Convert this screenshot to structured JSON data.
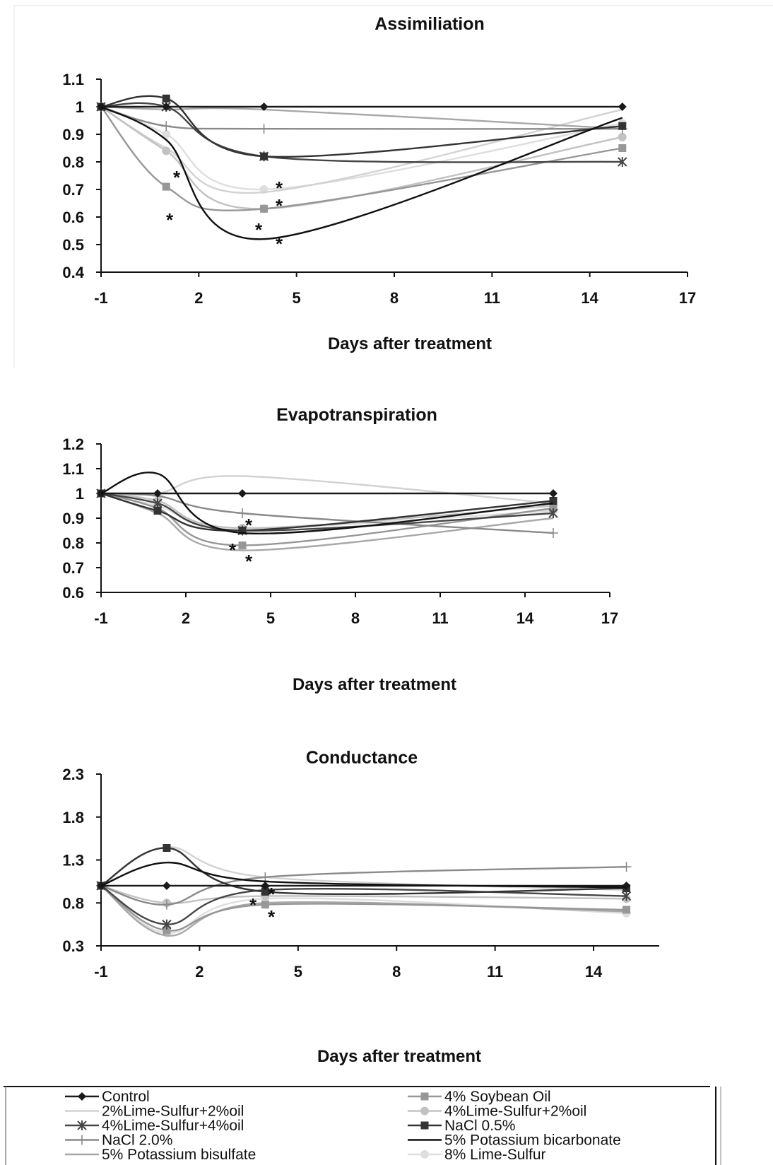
{
  "chart_data": [
    {
      "type": "line",
      "title": "Assimiliation",
      "xlabel": "Days after treatment",
      "ylabel": "",
      "xlim": [
        -1,
        17
      ],
      "ylim": [
        0.4,
        1.1
      ],
      "xticks": [
        "-1",
        "2",
        "5",
        "8",
        "11",
        "14",
        "17"
      ],
      "yticks": [
        "0.4",
        "0.5",
        "0.6",
        "0.7",
        "0.8",
        "0.9",
        "1",
        "1.1"
      ],
      "x": [
        -1,
        1,
        4,
        15
      ],
      "series": [
        {
          "name": "Control",
          "values": [
            1.0,
            1.0,
            1.0,
            1.0
          ]
        },
        {
          "name": "2%Lime-Sulfur+2%oil",
          "values": [
            1.0,
            0.85,
            0.69,
            0.99
          ]
        },
        {
          "name": "4%Lime-Sulfur+4%oil",
          "values": [
            1.0,
            1.0,
            0.82,
            0.8
          ]
        },
        {
          "name": "NaCl 2.0%",
          "values": [
            1.0,
            0.93,
            0.92,
            0.92
          ]
        },
        {
          "name": "5% Potassium bisulfate",
          "values": [
            1.0,
            0.99,
            0.99,
            0.92
          ]
        },
        {
          "name": "4% Soybean Oil",
          "values": [
            1.0,
            0.71,
            0.63,
            0.85
          ]
        },
        {
          "name": "4%Lime-Sulfur+2%oil",
          "values": [
            1.0,
            0.84,
            0.63,
            0.89
          ]
        },
        {
          "name": "NaCl 0.5%",
          "values": [
            1.0,
            1.03,
            0.82,
            0.93
          ]
        },
        {
          "name": "5% Potassium bicarbonate",
          "values": [
            1.0,
            0.88,
            0.52,
            0.96
          ]
        },
        {
          "name": "8% Lime-Sulfur",
          "values": [
            1.0,
            0.9,
            0.7,
            0.94
          ]
        }
      ],
      "annotations": [
        "*",
        "*",
        "*",
        "*",
        "*",
        "*"
      ]
    },
    {
      "type": "line",
      "title": "Evapotranspiration",
      "xlabel": "Days after treatment",
      "ylabel": "",
      "xlim": [
        -1,
        17
      ],
      "ylim": [
        0.6,
        1.2
      ],
      "xticks": [
        "-1",
        "2",
        "5",
        "8",
        "11",
        "14",
        "17"
      ],
      "yticks": [
        "0.6",
        "0.7",
        "0.8",
        "0.9",
        "1",
        "1.1",
        "1.2"
      ],
      "x": [
        -1,
        1,
        4,
        15
      ],
      "series": [
        {
          "name": "Control",
          "values": [
            1.0,
            1.0,
            1.0,
            1.0
          ]
        },
        {
          "name": "2%Lime-Sulfur+2%oil",
          "values": [
            1.0,
            1.0,
            1.07,
            0.96
          ]
        },
        {
          "name": "4%Lime-Sulfur+4%oil",
          "values": [
            1.0,
            0.96,
            0.85,
            0.92
          ]
        },
        {
          "name": "NaCl 2.0%",
          "values": [
            1.0,
            0.99,
            0.92,
            0.84
          ]
        },
        {
          "name": "5% Potassium bisulfate",
          "values": [
            1.0,
            0.92,
            0.77,
            0.9
          ]
        },
        {
          "name": "4% Soybean Oil",
          "values": [
            1.0,
            0.94,
            0.79,
            0.94
          ]
        },
        {
          "name": "4%Lime-Sulfur+2%oil",
          "values": [
            1.0,
            0.97,
            0.86,
            0.95
          ]
        },
        {
          "name": "NaCl 0.5%",
          "values": [
            1.0,
            0.93,
            0.85,
            0.97
          ]
        },
        {
          "name": "5% Potassium bicarbonate",
          "values": [
            1.0,
            1.08,
            0.84,
            0.96
          ]
        },
        {
          "name": "8% Lime-Sulfur",
          "values": [
            1.0,
            0.95,
            0.86,
            0.93
          ]
        }
      ],
      "annotations": [
        "*",
        "*",
        "*"
      ]
    },
    {
      "type": "line",
      "title": "Conductance",
      "xlabel": "Days after treatment",
      "ylabel": "",
      "xlim": [
        -1,
        16
      ],
      "ylim": [
        0.3,
        2.3
      ],
      "xticks": [
        "-1",
        "2",
        "5",
        "8",
        "11",
        "14"
      ],
      "yticks": [
        "0.3",
        "0.8",
        "1.3",
        "1.8",
        "2.3"
      ],
      "x": [
        -1,
        1,
        4,
        15
      ],
      "series": [
        {
          "name": "Control",
          "values": [
            1.0,
            1.0,
            1.0,
            1.0
          ]
        },
        {
          "name": "2%Lime-Sulfur+2%oil",
          "values": [
            1.0,
            1.45,
            1.1,
            0.95
          ]
        },
        {
          "name": "4%Lime-Sulfur+4%oil",
          "values": [
            1.0,
            0.55,
            0.95,
            0.88
          ]
        },
        {
          "name": "NaCl 2.0%",
          "values": [
            1.0,
            0.78,
            1.1,
            1.22
          ]
        },
        {
          "name": "5% Potassium bisulfate",
          "values": [
            1.0,
            0.42,
            0.8,
            0.7
          ]
        },
        {
          "name": "4% Soybean Oil",
          "values": [
            1.0,
            0.48,
            0.78,
            0.72
          ]
        },
        {
          "name": "4%Lime-Sulfur+2%oil",
          "values": [
            1.0,
            0.8,
            0.88,
            0.85
          ]
        },
        {
          "name": "NaCl 0.5%",
          "values": [
            1.0,
            1.44,
            0.93,
            0.97
          ]
        },
        {
          "name": "5% Potassium bicarbonate",
          "values": [
            1.0,
            1.27,
            1.05,
            0.98
          ]
        },
        {
          "name": "8% Lime-Sulfur",
          "values": [
            1.0,
            0.45,
            0.85,
            0.68
          ]
        }
      ],
      "annotations": [
        "*",
        "*",
        "*"
      ]
    }
  ],
  "legend": {
    "entries": [
      {
        "label": "Control",
        "color": "#1a1a1a",
        "marker": "diamond"
      },
      {
        "label": "2%Lime-Sulfur+2%oil",
        "color": "#d2d2d2",
        "marker": "none"
      },
      {
        "label": "4%Lime-Sulfur+4%oil",
        "color": "#454545",
        "marker": "star"
      },
      {
        "label": "NaCl 2.0%",
        "color": "#8a8a8a",
        "marker": "plus"
      },
      {
        "label": "5% Potassium bisulfate",
        "color": "#a8a8a8",
        "marker": "none"
      },
      {
        "label": "4% Soybean Oil",
        "color": "#979797",
        "marker": "square"
      },
      {
        "label": "4%Lime-Sulfur+2%oil",
        "color": "#c2c2c2",
        "marker": "circle"
      },
      {
        "label": "NaCl 0.5%",
        "color": "#333333",
        "marker": "square"
      },
      {
        "label": "5% Potassium bicarbonate",
        "color": "#111111",
        "marker": "none"
      },
      {
        "label": "8% Lime-Sulfur",
        "color": "#dedede",
        "marker": "circle"
      }
    ]
  }
}
